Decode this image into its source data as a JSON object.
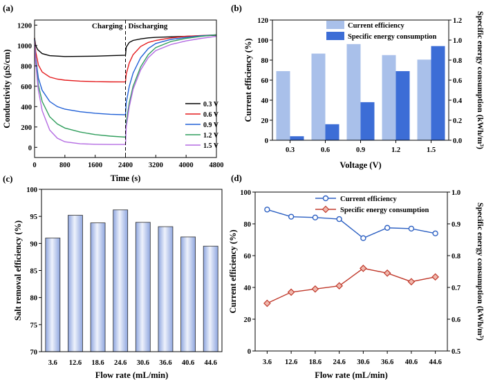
{
  "chart_data": [
    {
      "panel": "(a)",
      "type": "line",
      "xlabel": "Time (s)",
      "ylabel": "Conductivity (μS/cm)",
      "xlim": [
        0,
        4800
      ],
      "ylim": [
        -100,
        1250
      ],
      "xticks": [
        0,
        800,
        1600,
        2400,
        3200,
        4000,
        4800
      ],
      "yticks": [
        0,
        200,
        400,
        600,
        800,
        1000,
        1200
      ],
      "annotations": [
        "Charging",
        "Discharging"
      ],
      "divider_x": 2400,
      "legend_position": "middle-right",
      "series": [
        {
          "name": "0.3 V",
          "color": "#000000",
          "x": [
            0,
            30,
            80,
            200,
            400,
            800,
            1200,
            1600,
            2000,
            2400,
            2420,
            2500,
            2600,
            2800,
            3000,
            3200,
            3600,
            4000,
            4400,
            4800
          ],
          "y": [
            1075,
            1000,
            960,
            920,
            900,
            892,
            893,
            895,
            900,
            905,
            985,
            1030,
            1050,
            1065,
            1075,
            1080,
            1085,
            1090,
            1095,
            1100
          ]
        },
        {
          "name": "0.6 V",
          "color": "#e41a1c",
          "x": [
            0,
            30,
            100,
            200,
            400,
            600,
            800,
            1200,
            1600,
            2000,
            2400,
            2420,
            2500,
            2600,
            2800,
            3000,
            3200,
            3600,
            4000,
            4400,
            4800
          ],
          "y": [
            1070,
            940,
            810,
            740,
            690,
            670,
            660,
            650,
            645,
            643,
            642,
            720,
            830,
            910,
            990,
            1030,
            1050,
            1075,
            1090,
            1098,
            1105
          ]
        },
        {
          "name": "0.9 V",
          "color": "#1f5fd6",
          "x": [
            0,
            30,
            100,
            200,
            400,
            600,
            800,
            1200,
            1600,
            2000,
            2400,
            2420,
            2500,
            2600,
            2800,
            3000,
            3200,
            3600,
            4000,
            4400,
            4800
          ],
          "y": [
            1065,
            880,
            680,
            560,
            450,
            400,
            375,
            350,
            335,
            325,
            320,
            440,
            600,
            730,
            880,
            970,
            1020,
            1060,
            1080,
            1095,
            1105
          ]
        },
        {
          "name": "1.2 V",
          "color": "#2e9d5b",
          "x": [
            0,
            30,
            100,
            200,
            400,
            600,
            800,
            1200,
            1600,
            2000,
            2400,
            2420,
            2500,
            2600,
            2800,
            3000,
            3200,
            3600,
            4000,
            4400,
            4800
          ],
          "y": [
            1065,
            850,
            610,
            450,
            300,
            230,
            190,
            150,
            125,
            110,
            100,
            250,
            440,
            600,
            790,
            910,
            980,
            1040,
            1070,
            1090,
            1105
          ]
        },
        {
          "name": "1.5 V",
          "color": "#b36ae2",
          "x": [
            0,
            30,
            100,
            200,
            400,
            600,
            800,
            1200,
            1600,
            2000,
            2400,
            2420,
            2500,
            2600,
            2800,
            3000,
            3200,
            3600,
            4000,
            4400,
            4800
          ],
          "y": [
            1060,
            830,
            560,
            360,
            170,
            90,
            55,
            35,
            30,
            28,
            28,
            200,
            400,
            570,
            760,
            880,
            950,
            1010,
            1045,
            1070,
            1090
          ]
        }
      ]
    },
    {
      "panel": "(b)",
      "type": "bar",
      "xlabel": "Voltage (V)",
      "ylabel": "Current efficiency (%)",
      "ylabel_right": "Specific energy consumption (kWh/m³)",
      "categories": [
        "0.3",
        "0.6",
        "0.9",
        "1.2",
        "1.5"
      ],
      "ylim": [
        0,
        120
      ],
      "yticks": [
        0,
        20,
        40,
        60,
        80,
        100,
        120
      ],
      "ylim_right": [
        0,
        1.2
      ],
      "yticks_right": [
        "0.0",
        "0.2",
        "0.4",
        "0.6",
        "0.8",
        "1.0",
        "1.2"
      ],
      "legend_position": "top-right",
      "series": [
        {
          "name": "Current efficiency",
          "axis": "left",
          "color": "#a9c0ea",
          "values": [
            69,
            86.5,
            96,
            85,
            80.5
          ]
        },
        {
          "name": "Specific energy consumption",
          "axis": "right",
          "color": "#3c6dd6",
          "values": [
            0.04,
            0.16,
            0.38,
            0.69,
            0.94
          ]
        }
      ]
    },
    {
      "panel": "(c)",
      "type": "bar",
      "xlabel": "Flow rate (mL/min)",
      "ylabel": "Salt removal efficiency (%)",
      "categories": [
        "3.6",
        "12.6",
        "18.6",
        "24.6",
        "30.6",
        "36.6",
        "40.6",
        "44.6"
      ],
      "ylim": [
        70,
        100
      ],
      "yticks": [
        70,
        75,
        80,
        85,
        90,
        95,
        100
      ],
      "series": [
        {
          "name": "Salt removal efficiency",
          "color": "#b8c8ef",
          "values": [
            91,
            95.2,
            93.8,
            96.2,
            93.9,
            93.1,
            91.2,
            89.5
          ]
        }
      ]
    },
    {
      "panel": "(d)",
      "type": "line",
      "xlabel": "Flow rate (mL/min)",
      "ylabel": "Current efficiency (%)",
      "ylabel_right": "Specific energy consumption (kWh/m³)",
      "categories": [
        "3.6",
        "12.6",
        "18.6",
        "24.6",
        "30.6",
        "36.6",
        "40.6",
        "44.6"
      ],
      "ylim": [
        0,
        100
      ],
      "yticks": [
        0,
        20,
        40,
        60,
        80,
        100
      ],
      "ylim_right": [
        0.5,
        1.0
      ],
      "yticks_right": [
        "0.5",
        "0.6",
        "0.7",
        "0.8",
        "0.9",
        "1.0"
      ],
      "legend_position": "top-right",
      "series": [
        {
          "name": "Current efficiency",
          "axis": "left",
          "marker": "circle",
          "color": "#2b5fc2",
          "values": [
            89,
            84.5,
            84,
            83,
            71,
            77.5,
            77,
            74
          ]
        },
        {
          "name": "Specific energy consumption",
          "axis": "right",
          "marker": "diamond",
          "color": "#c0392b",
          "values": [
            0.65,
            0.685,
            0.695,
            0.705,
            0.76,
            0.745,
            0.718,
            0.733
          ]
        }
      ]
    }
  ]
}
